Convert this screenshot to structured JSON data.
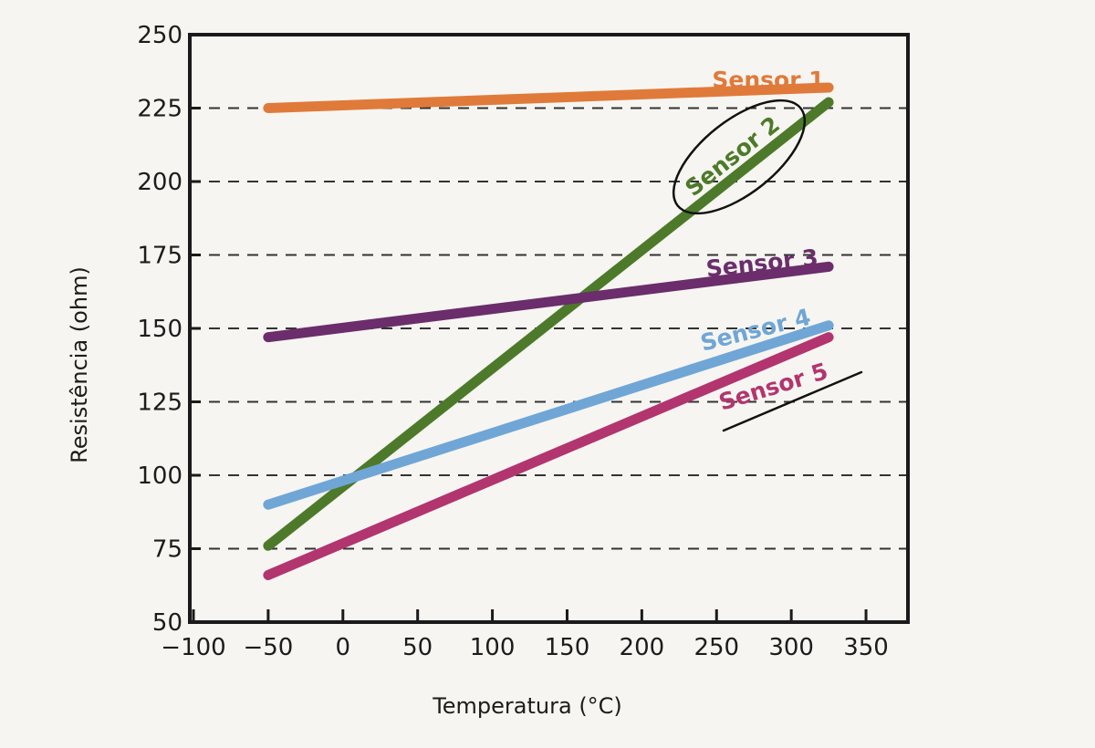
{
  "chart_data": {
    "type": "line",
    "xlabel": "Temperatura (°C)",
    "ylabel": "Resistência (ohm)",
    "xlim": [
      -100,
      375
    ],
    "ylim": [
      50,
      250
    ],
    "x_ticks": [
      -100,
      -50,
      0,
      50,
      100,
      150,
      200,
      250,
      300,
      350
    ],
    "x_tick_labels": [
      "−100",
      "−50",
      "0",
      "50",
      "100",
      "150",
      "200",
      "250",
      "300",
      "350"
    ],
    "y_ticks": [
      50,
      75,
      100,
      125,
      150,
      175,
      200,
      225,
      250
    ],
    "y_tick_labels": [
      "50",
      "75",
      "100",
      "125",
      "150",
      "175",
      "200",
      "225",
      "250"
    ],
    "grid": "dashed horizontal at 75–225",
    "series": [
      {
        "name": "Sensor 1",
        "color": "#e07a3a",
        "x": [
          -50,
          325
        ],
        "y": [
          225,
          232
        ]
      },
      {
        "name": "Sensor 2",
        "color": "#4d7a2a",
        "x": [
          -50,
          325
        ],
        "y": [
          76,
          227
        ],
        "highlighted": true
      },
      {
        "name": "Sensor 3",
        "color": "#6b2d6b",
        "x": [
          -50,
          325
        ],
        "y": [
          147,
          171
        ]
      },
      {
        "name": "Sensor 4",
        "color": "#6fa6d6",
        "x": [
          -50,
          325
        ],
        "y": [
          90,
          151
        ]
      },
      {
        "name": "Sensor 5",
        "color": "#b2356f",
        "x": [
          -50,
          325
        ],
        "y": [
          66,
          147
        ]
      }
    ]
  }
}
